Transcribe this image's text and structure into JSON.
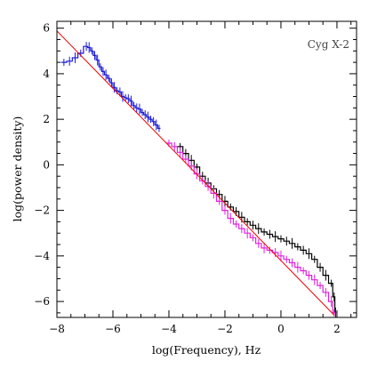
{
  "chart_data": {
    "type": "line",
    "annotation": "Cyg X-2",
    "xlabel": "log(Frequency), Hz",
    "ylabel": "log(power density)",
    "xlim": [
      -8,
      2.7
    ],
    "ylim": [
      -6.7,
      6.3
    ],
    "x_ticks": [
      -8,
      -6,
      -4,
      -2,
      0,
      2
    ],
    "y_ticks": [
      -6,
      -4,
      -2,
      0,
      2,
      4,
      6
    ],
    "x_tick_labels": [
      "−8",
      "−6",
      "−4",
      "−2",
      "0",
      "2"
    ],
    "y_tick_labels": [
      "−6",
      "−4",
      "−2",
      "0",
      "2",
      "4",
      "6"
    ],
    "grid": false,
    "legend": "none",
    "series": [
      {
        "color": "#1a1ad8",
        "style": "step",
        "x": [
          -7.75,
          -7.55,
          -7.35,
          -7.15,
          -6.95,
          -6.85,
          -6.75,
          -6.65,
          -6.55,
          -6.45,
          -6.35,
          -6.25,
          -6.15,
          -6.05,
          -5.95,
          -5.85,
          -5.75,
          -5.65,
          -5.55,
          -5.45,
          -5.35,
          -5.25,
          -5.15,
          -5.05,
          -4.95,
          -4.85,
          -4.75,
          -4.65,
          -4.55,
          -4.45,
          -4.35
        ],
        "y": [
          4.5,
          4.55,
          4.7,
          4.9,
          5.2,
          5.15,
          5.0,
          4.8,
          4.6,
          4.3,
          4.1,
          3.95,
          3.8,
          3.6,
          3.4,
          3.25,
          3.2,
          3.0,
          2.95,
          2.9,
          2.8,
          2.6,
          2.5,
          2.45,
          2.3,
          2.2,
          2.1,
          2.0,
          1.9,
          1.75,
          1.6
        ]
      },
      {
        "color": "#000000",
        "style": "step",
        "x": [
          -3.6,
          -3.4,
          -3.2,
          -3.0,
          -2.8,
          -2.6,
          -2.4,
          -2.2,
          -2.0,
          -1.8,
          -1.6,
          -1.4,
          -1.2,
          -1.0,
          -0.8,
          -0.6,
          -0.4,
          -0.2,
          0.0,
          0.2,
          0.4,
          0.6,
          0.8,
          1.0,
          1.2,
          1.4,
          1.6,
          1.8,
          1.9,
          1.95
        ],
        "y": [
          0.8,
          0.5,
          0.2,
          -0.1,
          -0.5,
          -0.8,
          -1.05,
          -1.3,
          -1.6,
          -1.85,
          -2.05,
          -2.3,
          -2.5,
          -2.65,
          -2.8,
          -2.95,
          -3.05,
          -3.15,
          -3.25,
          -3.35,
          -3.45,
          -3.6,
          -3.75,
          -3.9,
          -4.15,
          -4.5,
          -4.85,
          -5.2,
          -5.8,
          -6.5
        ]
      },
      {
        "color": "#e020e0",
        "style": "step",
        "x": [
          -4.0,
          -3.8,
          -3.6,
          -3.4,
          -3.2,
          -3.0,
          -2.8,
          -2.6,
          -2.4,
          -2.2,
          -2.0,
          -1.8,
          -1.6,
          -1.4,
          -1.2,
          -1.0,
          -0.8,
          -0.6,
          -0.4,
          -0.2,
          0.0,
          0.2,
          0.4,
          0.6,
          0.8,
          1.0,
          1.2,
          1.4,
          1.6,
          1.8,
          1.9
        ],
        "y": [
          0.95,
          0.8,
          0.55,
          0.25,
          -0.05,
          -0.4,
          -0.7,
          -0.95,
          -1.25,
          -1.6,
          -2.0,
          -2.35,
          -2.6,
          -2.8,
          -3.0,
          -3.2,
          -3.45,
          -3.65,
          -3.75,
          -3.85,
          -4.0,
          -4.15,
          -4.3,
          -4.5,
          -4.65,
          -4.85,
          -5.05,
          -5.3,
          -5.6,
          -6.0,
          -6.5
        ]
      },
      {
        "color": "#ee0000",
        "style": "line",
        "x": [
          -8.0,
          1.9
        ],
        "y": [
          5.88,
          -6.6
        ]
      }
    ]
  }
}
